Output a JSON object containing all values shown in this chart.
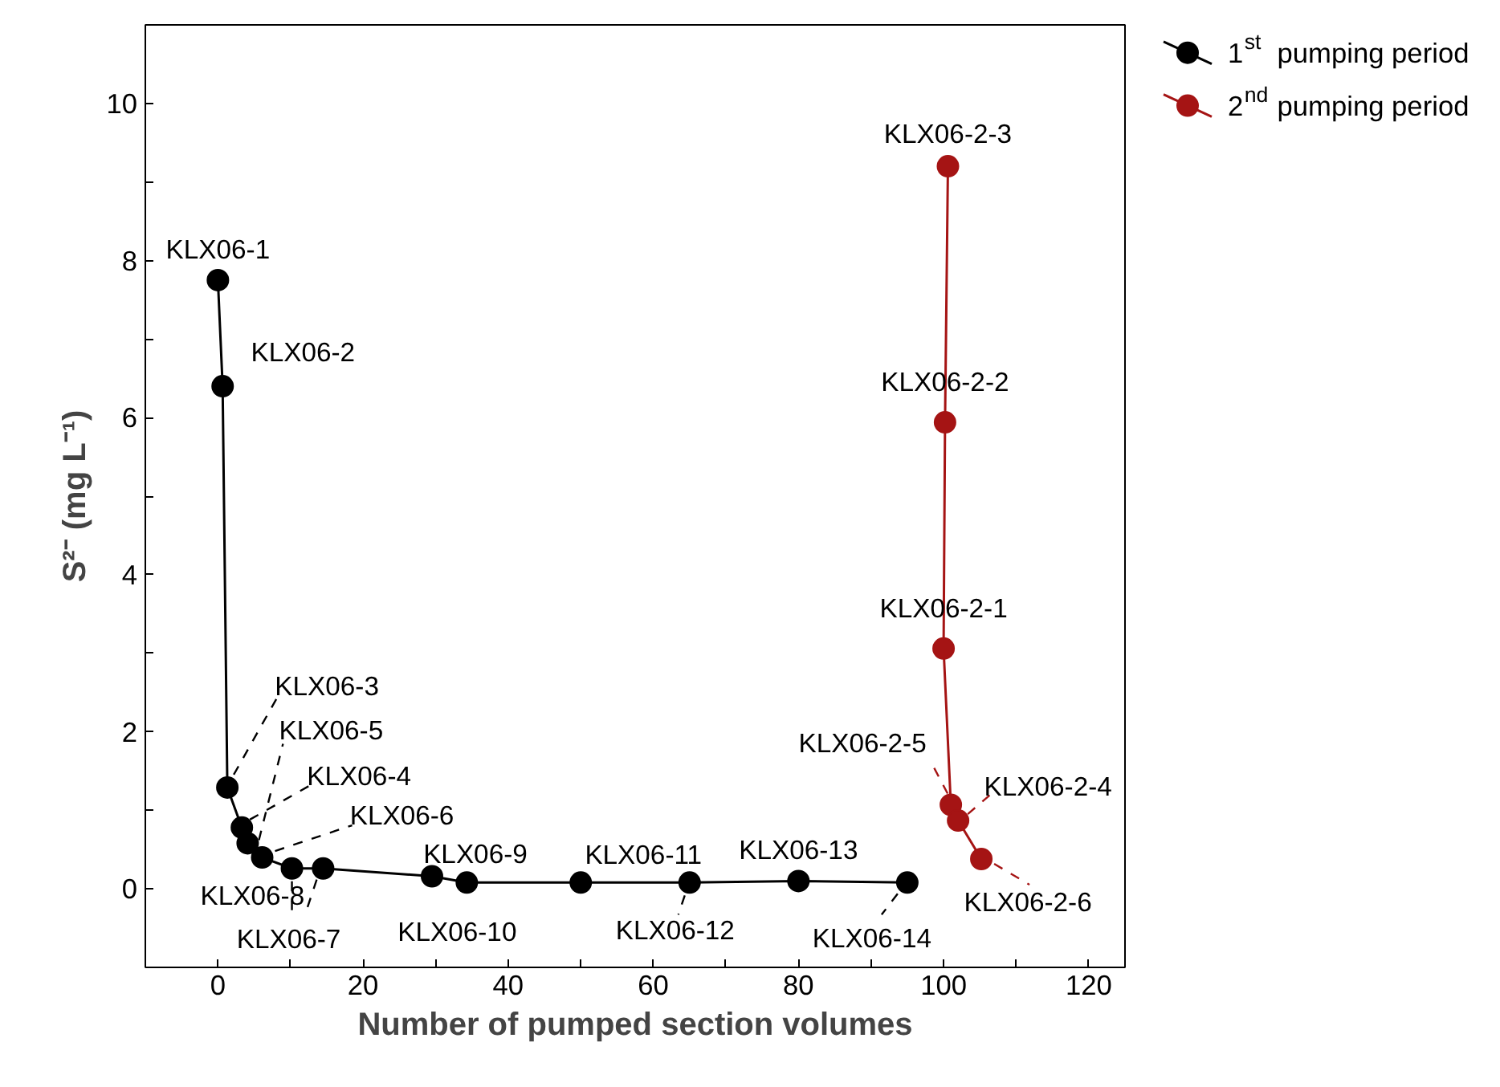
{
  "chart_data": {
    "type": "line",
    "xlabel": "Number of pumped section volumes",
    "ylabel": "S²⁻ (mg L⁻¹)",
    "xlim": [
      -10,
      125
    ],
    "ylim": [
      -1,
      11
    ],
    "xticks": [
      0,
      20,
      40,
      60,
      80,
      100,
      120,
      {
        "value": 10,
        "label": null
      },
      {
        "value": 30,
        "label": null
      },
      {
        "value": 50,
        "label": null
      },
      {
        "value": 70,
        "label": null
      },
      {
        "value": 90,
        "label": null
      },
      {
        "value": 110,
        "label": null
      }
    ],
    "yticks": [
      0,
      2,
      4,
      6,
      8,
      10,
      {
        "value": 1,
        "label": null
      },
      {
        "value": 3,
        "label": null
      },
      {
        "value": 5,
        "label": null
      },
      {
        "value": 7,
        "label": null
      },
      {
        "value": 9,
        "label": null
      }
    ],
    "marker": "circle",
    "line_style": "solid",
    "grid": false,
    "legend": "top right",
    "series": [
      {
        "name": "1$^{st}$ pumping period",
        "color": "#000000",
        "x": [
          0,
          0.65,
          1.3,
          3.3,
          4.1,
          6.1,
          10.2,
          14.5,
          29.5,
          34.3,
          50,
          65,
          80,
          95
        ],
        "values": [
          7.75,
          6.4,
          1.29,
          0.78,
          0.58,
          0.4,
          0.26,
          0.26,
          0.16,
          0.08,
          0.08,
          0.08,
          0.1,
          0.08
        ]
      },
      {
        "name": "2$^{nd}$ pumping period",
        "color": "#a51414",
        "x": [
          100.6,
          100.2,
          100,
          101,
          102,
          105.2
        ],
        "values": [
          9.2,
          5.94,
          3.06,
          1.07,
          0.87,
          0.38
        ]
      }
    ],
    "annotations": [
      {
        "text": "KLX06-1",
        "x": 0,
        "y": 7.75
      },
      {
        "text": "KLX06-2",
        "x": 0.65,
        "y": 6.4
      },
      {
        "text": "KLX06-3",
        "x": 1.3,
        "y": 1.29
      },
      {
        "text": "KLX06-4",
        "x": 3.3,
        "y": 0.78
      },
      {
        "text": "KLX06-5",
        "x": 4.1,
        "y": 0.58
      },
      {
        "text": "KLX06-6",
        "x": 6.1,
        "y": 0.4
      },
      {
        "text": "KLX06-7",
        "x": 10.2,
        "y": 0.26
      },
      {
        "text": "KLX06-8",
        "x": 14.5,
        "y": 0.26
      },
      {
        "text": "KLX06-9",
        "x": 29.5,
        "y": 0.16
      },
      {
        "text": "KLX06-10",
        "x": 34.3,
        "y": 0.08
      },
      {
        "text": "KLX06-11",
        "x": 50,
        "y": 0.08
      },
      {
        "text": "KLX06-12",
        "x": 65,
        "y": 0.08
      },
      {
        "text": "KLX06-13",
        "x": 80,
        "y": 0.1
      },
      {
        "text": "KLX06-14",
        "x": 95,
        "y": 0.08
      },
      {
        "text": "KLX06-2-1",
        "x": 100,
        "y": 3.06
      },
      {
        "text": "KLX06-2-2",
        "x": 100.2,
        "y": 5.94
      },
      {
        "text": "KLX06-2-3",
        "x": 100.6,
        "y": 9.2
      },
      {
        "text": "KLX06-2-4",
        "x": 102,
        "y": 0.87
      },
      {
        "text": "KLX06-2-5",
        "x": 101,
        "y": 1.07
      },
      {
        "text": "KLX06-2-6",
        "x": 105.2,
        "y": 0.38
      }
    ]
  }
}
